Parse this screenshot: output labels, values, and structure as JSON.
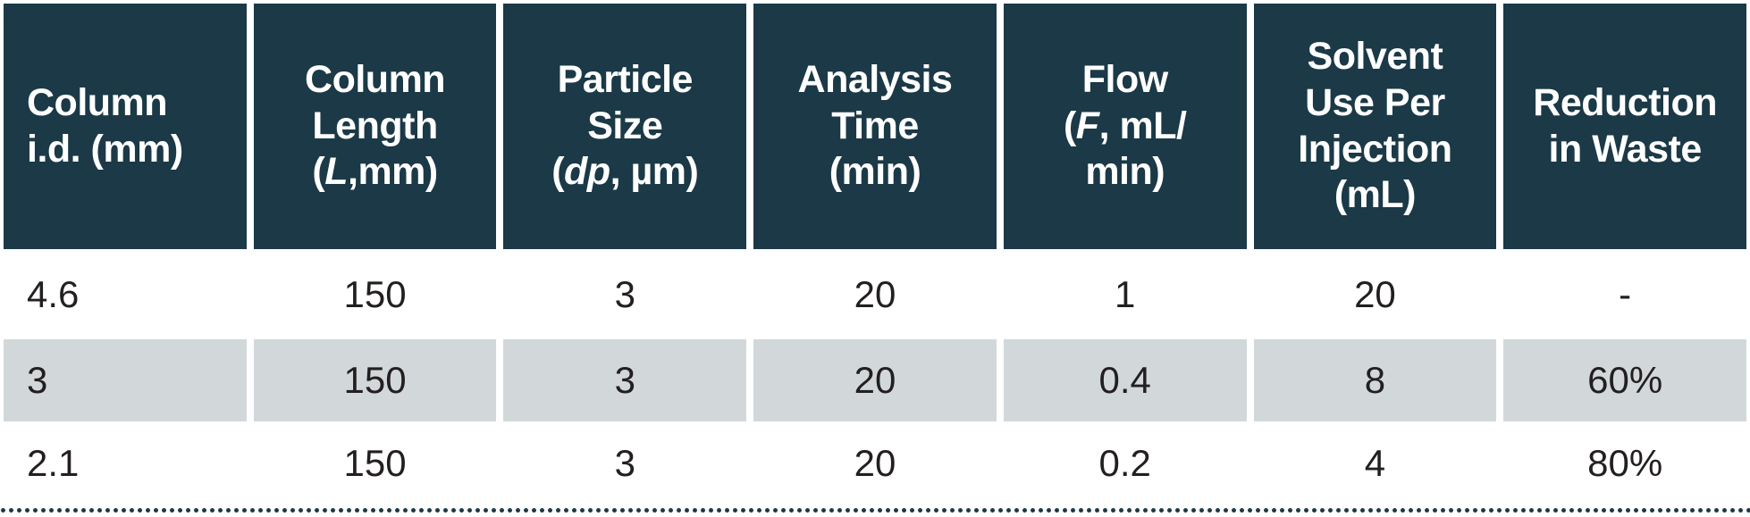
{
  "style": {
    "header_bg": "#1b3947",
    "header_text": "#ffffff",
    "shaded_row_bg": "#d2d8da",
    "body_text": "#231f20",
    "gutter": "#ffffff",
    "dot_color": "#1b3947"
  },
  "chart_data": {
    "type": "table",
    "column_headers_plain": [
      "Column i.d. (mm)",
      "Column Length (L,mm)",
      "Particle Size (dp, µm)",
      "Analysis Time (min)",
      "Flow (F, mL/min)",
      "Solvent Use Per Injection (mL)",
      "Reduction in Waste"
    ],
    "columns": [
      {
        "id": "column-id",
        "lines": [
          [
            "Column"
          ],
          [
            "i.d. (mm)"
          ]
        ]
      },
      {
        "id": "column-length",
        "lines": [
          [
            "Column"
          ],
          [
            "Length"
          ],
          [
            "(",
            "L",
            ",mm)"
          ]
        ]
      },
      {
        "id": "particle-size",
        "lines": [
          [
            "Particle"
          ],
          [
            "Size"
          ],
          [
            "(",
            "dp",
            ", µm)"
          ]
        ]
      },
      {
        "id": "analysis-time",
        "lines": [
          [
            "Analysis"
          ],
          [
            "Time"
          ],
          [
            "(min)"
          ]
        ]
      },
      {
        "id": "flow",
        "lines": [
          [
            "Flow"
          ],
          [
            "(",
            "F",
            ", mL/"
          ],
          [
            "min)"
          ]
        ]
      },
      {
        "id": "solvent-use",
        "lines": [
          [
            "Solvent"
          ],
          [
            "Use Per"
          ],
          [
            "Injection"
          ],
          [
            "(mL)"
          ]
        ]
      },
      {
        "id": "reduction",
        "lines": [
          [
            "Reduction"
          ],
          [
            "in Waste"
          ]
        ]
      }
    ],
    "rows": [
      [
        "4.6",
        "150",
        "3",
        "20",
        "1",
        "20",
        "-"
      ],
      [
        "3",
        "150",
        "3",
        "20",
        "0.4",
        "8",
        "60%"
      ],
      [
        "2.1",
        "150",
        "3",
        "20",
        "0.2",
        "4",
        "80%"
      ]
    ],
    "shaded_row_index": 1
  }
}
